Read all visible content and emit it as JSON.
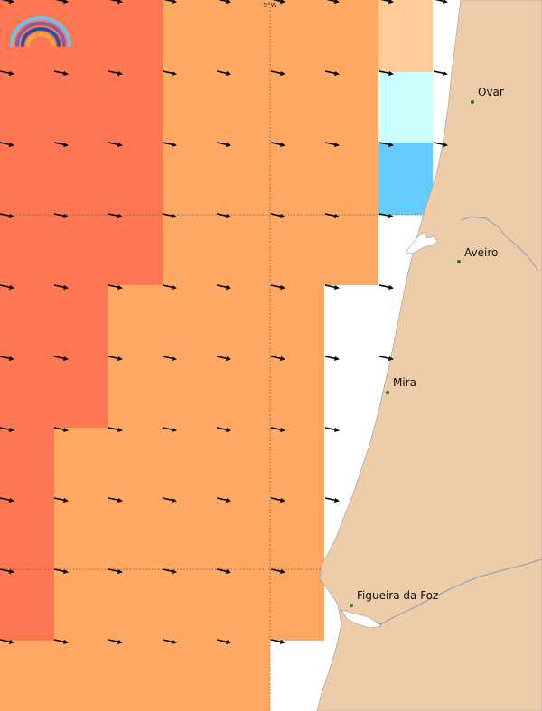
{
  "map": {
    "longitude_label": "9°W",
    "places": [
      {
        "key": "ovar",
        "name": "Ovar"
      },
      {
        "key": "aveiro",
        "name": "Aveiro"
      },
      {
        "key": "mira",
        "name": "Mira"
      },
      {
        "key": "figueira",
        "name": "Figueira da Foz"
      }
    ],
    "colors": {
      "land": "#EDCCAA",
      "sea_white": "#FFFFFF",
      "cell_red": "#FF7752",
      "cell_orange": "#FFA864",
      "cell_light_orange": "#FFCC99",
      "cell_cyan": "#CCFFFF",
      "cell_blue": "#66CCFF",
      "arrow": "#000000",
      "city_dot": "#1F7A1F",
      "river": "#8F9BB3"
    },
    "logo_icon": "rainbow-logo-icon"
  }
}
